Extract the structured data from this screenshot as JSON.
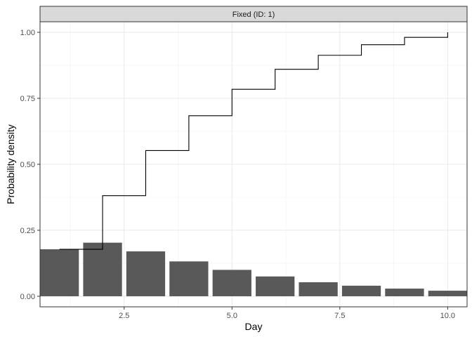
{
  "chart_data": {
    "type": "bar",
    "facet_label": "Fixed (ID: 1)",
    "xlabel": "Day",
    "ylabel": "Probability density",
    "xlim": [
      0.55,
      10.45
    ],
    "ylim": [
      -0.04,
      1.04
    ],
    "x_ticks": [
      2.5,
      5.0,
      7.5,
      10.0
    ],
    "x_tick_labels": [
      "2.5",
      "5.0",
      "7.5",
      "10.0"
    ],
    "y_ticks": [
      0.0,
      0.25,
      0.5,
      0.75,
      1.0
    ],
    "y_tick_labels": [
      "0.00",
      "0.25",
      "0.50",
      "0.75",
      "1.00"
    ],
    "grid": true,
    "bar_color": "#595959",
    "line_color": "#000000",
    "series": [
      {
        "type": "bar",
        "x": [
          1,
          2,
          3,
          4,
          5,
          6,
          7,
          8,
          9,
          10
        ],
        "values": [
          0.178,
          0.203,
          0.17,
          0.132,
          0.1,
          0.075,
          0.053,
          0.04,
          0.029,
          0.021
        ]
      },
      {
        "type": "step",
        "x": [
          1,
          2,
          3,
          4,
          5,
          6,
          7,
          8,
          9,
          10
        ],
        "values": [
          0.178,
          0.381,
          0.552,
          0.684,
          0.784,
          0.86,
          0.913,
          0.953,
          0.981,
          1.0
        ]
      }
    ]
  }
}
